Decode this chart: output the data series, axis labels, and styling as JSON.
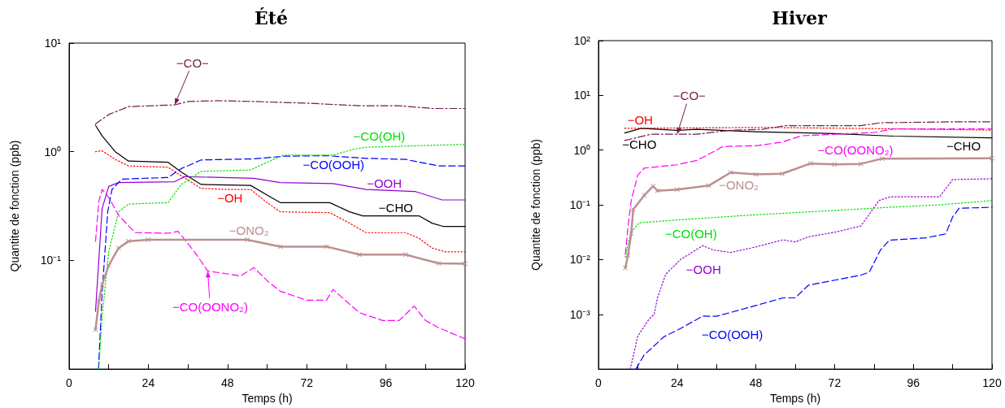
{
  "chart_data": [
    {
      "type": "line",
      "title": "Été",
      "xlabel": "Temps (h)",
      "ylabel": "Quantite de fonction (ppb)",
      "log": true,
      "grid": false,
      "xlim": [
        0,
        120
      ],
      "xticks": [
        0,
        {
          "value": 12,
          "label": null
        },
        24,
        {
          "value": 36,
          "label": null
        },
        48,
        {
          "value": 60,
          "label": null
        },
        72,
        {
          "value": 84,
          "label": null
        },
        96,
        {
          "value": 108,
          "label": null
        },
        120
      ],
      "ylim": [
        0.01,
        10
      ],
      "yticks": [
        {
          "value": 10,
          "label": "10¹"
        },
        {
          "value": 1,
          "label": "10⁰"
        },
        {
          "value": 0.1,
          "label": "10⁻¹"
        }
      ],
      "series": [
        {
          "color": "#701c50",
          "line_style": "dashdot",
          "x": [
            8,
            12,
            18,
            32,
            36,
            45,
            56,
            72,
            88,
            100,
            110,
            120
          ],
          "values": [
            1.8,
            2.2,
            2.6,
            2.7,
            2.9,
            2.95,
            2.9,
            2.8,
            2.65,
            2.65,
            2.5,
            2.5
          ]
        },
        {
          "color": "#000000",
          "line_style": "solid",
          "x": [
            8,
            10,
            14,
            18,
            30,
            34,
            40,
            55,
            60,
            64,
            79,
            85,
            89,
            106,
            110,
            113.5,
            120
          ],
          "values": [
            1.75,
            1.4,
            1.0,
            0.82,
            0.8,
            0.65,
            0.5,
            0.49,
            0.4,
            0.34,
            0.34,
            0.28,
            0.257,
            0.257,
            0.22,
            0.205,
            0.205
          ]
        },
        {
          "color": "#ff0000",
          "line_style": "dotted",
          "x": [
            8,
            10,
            14,
            18,
            30,
            34,
            40,
            48,
            55,
            60,
            64,
            79,
            85,
            90,
            102,
            106,
            110,
            114,
            120
          ],
          "values": [
            1.0,
            1.02,
            0.85,
            0.74,
            0.72,
            0.6,
            0.46,
            0.45,
            0.45,
            0.34,
            0.28,
            0.275,
            0.22,
            0.18,
            0.18,
            0.16,
            0.13,
            0.12,
            0.12
          ]
        },
        {
          "color": "#9400d3",
          "line_style": "solid",
          "x": [
            8,
            9,
            10,
            12,
            15,
            32,
            35,
            56,
            64,
            80,
            90,
            105,
            113,
            120
          ],
          "values": [
            0.034,
            0.1,
            0.3,
            0.48,
            0.52,
            0.53,
            0.59,
            0.57,
            0.52,
            0.51,
            0.45,
            0.43,
            0.36,
            0.36
          ]
        },
        {
          "color": "#0000ff",
          "line_style": "dashed",
          "x": [
            8.9,
            10,
            11.7,
            13,
            16,
            30,
            34,
            40,
            56,
            65,
            78,
            90,
            102,
            112,
            120
          ],
          "values": [
            0.01,
            0.05,
            0.28,
            0.45,
            0.56,
            0.58,
            0.7,
            0.84,
            0.86,
            0.91,
            0.92,
            0.87,
            0.85,
            0.74,
            0.74
          ]
        },
        {
          "color": "#00e000",
          "line_style": "dotted",
          "x": [
            9,
            10,
            12,
            15,
            18,
            30,
            34,
            40,
            55,
            60,
            65,
            80,
            86,
            90,
            120
          ],
          "values": [
            0.01,
            0.03,
            0.12,
            0.28,
            0.33,
            0.34,
            0.5,
            0.66,
            0.68,
            0.8,
            0.93,
            0.93,
            1.05,
            1.1,
            1.17
          ]
        },
        {
          "color": "#ff00ff",
          "line_style": "dashed",
          "x": [
            8,
            9,
            10,
            12,
            15,
            20,
            30,
            33,
            38,
            42,
            52,
            56,
            60,
            64,
            72,
            78,
            80,
            84,
            88,
            95,
            100,
            104.6,
            108,
            112,
            120
          ],
          "values": [
            0.15,
            0.35,
            0.45,
            0.38,
            0.26,
            0.18,
            0.178,
            0.185,
            0.12,
            0.08,
            0.072,
            0.086,
            0.065,
            0.052,
            0.043,
            0.043,
            0.054,
            0.042,
            0.033,
            0.028,
            0.028,
            0.038,
            0.028,
            0.024,
            0.019
          ]
        },
        {
          "color": "#bc8f8f",
          "line_style": "solid",
          "marker": "cross",
          "x": [
            8,
            9,
            10,
            12,
            15,
            18,
            24,
            54,
            64,
            78,
            88,
            102,
            112,
            120
          ],
          "values": [
            0.023,
            0.042,
            0.06,
            0.09,
            0.13,
            0.15,
            0.155,
            0.155,
            0.134,
            0.134,
            0.113,
            0.113,
            0.094,
            0.093
          ]
        }
      ],
      "annotations": [
        {
          "text": "−CO−",
          "x": 32,
          "y": 2.7
        },
        {
          "text": "−CO(OH)",
          "x": 94,
          "y": 1.1
        },
        {
          "text": "−CO(OOH)",
          "x": 90,
          "y": 0.87
        },
        {
          "text": "−OOH",
          "x": 96,
          "y": 0.44
        },
        {
          "text": "−OH",
          "x": 48,
          "y": 0.45
        },
        {
          "text": "−CHO",
          "x": 100,
          "y": 0.257
        },
        {
          "text": "−ONO₂",
          "x": 54,
          "y": 0.155
        },
        {
          "text": "−CO(OONO₂)",
          "x": 42,
          "y": 0.08
        }
      ]
    },
    {
      "type": "line",
      "title": "Hiver",
      "xlabel": "Temps (h)",
      "ylabel": "Quantite de fonction (ppb)",
      "log": true,
      "grid": false,
      "xlim": [
        0,
        120
      ],
      "xticks": [
        0,
        {
          "value": 12,
          "label": null
        },
        24,
        {
          "value": 36,
          "label": null
        },
        48,
        {
          "value": 60,
          "label": null
        },
        72,
        {
          "value": 84,
          "label": null
        },
        96,
        {
          "value": 108,
          "label": null
        },
        120
      ],
      "ylim": [
        0.0001,
        100
      ],
      "yticks": [
        {
          "value": 100,
          "label": "10²"
        },
        {
          "value": 10,
          "label": "10¹"
        },
        {
          "value": 1,
          "label": "10⁰"
        },
        {
          "value": 0.1,
          "label": "10⁻¹"
        },
        {
          "value": 0.01,
          "label": "10⁻²"
        },
        {
          "value": 0.001,
          "label": "10⁻³"
        }
      ],
      "series": [
        {
          "color": "#000000",
          "line_style": "solid",
          "x": [
            8,
            13,
            24,
            30,
            48,
            72,
            90,
            120
          ],
          "values": [
            2.06,
            2.5,
            2.3,
            2.4,
            2.17,
            2.0,
            1.8,
            1.68
          ]
        },
        {
          "color": "#ff0000",
          "line_style": "dotted",
          "x": [
            8,
            50,
            90,
            120
          ],
          "values": [
            2.5,
            2.6,
            2.45,
            2.32
          ]
        },
        {
          "color": "#701c50",
          "line_style": "dashdot",
          "x": [
            8,
            16,
            30,
            40,
            50,
            57,
            80,
            86,
            110,
            120
          ],
          "values": [
            1.5,
            1.95,
            1.95,
            2.3,
            2.4,
            2.8,
            2.8,
            3.16,
            3.3,
            3.3
          ]
        },
        {
          "color": "#ff00ff",
          "line_style": "dashed",
          "x": [
            8.2,
            9,
            10,
            12,
            14,
            24,
            30,
            33,
            38,
            48,
            56,
            62,
            84,
            90,
            120
          ],
          "values": [
            0.0125,
            0.04,
            0.12,
            0.35,
            0.47,
            0.54,
            0.65,
            0.8,
            1.17,
            1.2,
            1.4,
            1.83,
            2.1,
            2.44,
            2.44
          ]
        },
        {
          "color": "#bc8f8f",
          "line_style": "solid",
          "marker": "cross",
          "x": [
            8.2,
            9,
            10,
            10.6,
            14,
            16.7,
            18,
            24,
            33.7,
            40.3,
            48,
            56,
            64.7,
            72,
            80,
            86.5,
            120
          ],
          "values": [
            0.007,
            0.012,
            0.03,
            0.082,
            0.15,
            0.22,
            0.18,
            0.19,
            0.225,
            0.39,
            0.36,
            0.37,
            0.57,
            0.55,
            0.56,
            0.7,
            0.71
          ]
        },
        {
          "color": "#00e000",
          "line_style": "dotted",
          "x": [
            8.2,
            9,
            10,
            12.4,
            24,
            48,
            72,
            88,
            104,
            120
          ],
          "values": [
            0.011,
            0.02,
            0.032,
            0.047,
            0.053,
            0.066,
            0.079,
            0.09,
            0.1,
            0.12
          ]
        },
        {
          "color": "#9400d3",
          "line_style": "dotted",
          "x": [
            9.7,
            12,
            15.3,
            17,
            18,
            20.5,
            25,
            31.8,
            35,
            40.3,
            48,
            56.3,
            60,
            64,
            72.4,
            80,
            82,
            85.5,
            89,
            104,
            108,
            120
          ],
          "values": [
            0.0001,
            0.0004,
            0.0008,
            0.001,
            0.002,
            0.0054,
            0.01,
            0.018,
            0.015,
            0.0135,
            0.017,
            0.023,
            0.021,
            0.026,
            0.032,
            0.041,
            0.06,
            0.12,
            0.14,
            0.14,
            0.29,
            0.3
          ]
        },
        {
          "color": "#0000ff",
          "line_style": "dashed",
          "x": [
            11.4,
            13.9,
            20,
            25,
            31.8,
            36,
            48,
            56.3,
            60,
            64,
            72,
            80,
            82.6,
            86,
            88.7,
            100,
            105.9,
            108,
            110,
            120
          ],
          "values": [
            0.0001,
            0.00018,
            0.00039,
            0.00055,
            0.00093,
            0.00092,
            0.00145,
            0.002,
            0.002,
            0.0034,
            0.0042,
            0.0052,
            0.0059,
            0.015,
            0.0226,
            0.025,
            0.0295,
            0.06,
            0.087,
            0.09
          ]
        }
      ],
      "annotations": [
        {
          "text": "−OH",
          "x": 8,
          "y": 2.5
        },
        {
          "text": "−CO−",
          "x": 24,
          "y": 1.95
        },
        {
          "text": "−CHO",
          "x": 8,
          "y": 2.06
        },
        {
          "text": "−CO(OONO₂)",
          "x": 62,
          "y": 1.83
        },
        {
          "text": "−CHO",
          "x": 120,
          "y": 1.68
        },
        {
          "text": "−ONO₂",
          "x": 40.3,
          "y": 0.39
        },
        {
          "text": "−CO(OH)",
          "x": 24,
          "y": 0.053
        },
        {
          "text": "−OOH",
          "x": 31.8,
          "y": 0.018
        },
        {
          "text": "−CO(OOH)",
          "x": 48,
          "y": 0.00145
        }
      ]
    }
  ]
}
